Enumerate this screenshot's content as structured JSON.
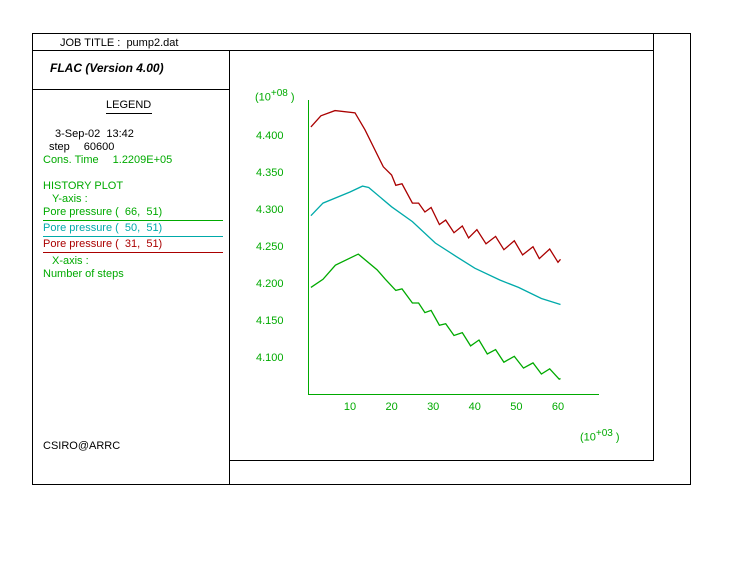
{
  "header": {
    "job_title_label": "JOB TITLE :",
    "job_title": "pump2.dat",
    "program": "FLAC (Version 4.00)"
  },
  "legend": {
    "title": "LEGEND",
    "date": "3-Sep-02  13:42",
    "step_label": "step",
    "step": "60600",
    "cons_time_label": "Cons. Time",
    "cons_time": "1.2209E+05",
    "history_plot": "HISTORY PLOT",
    "y_axis_label": "Y-axis :",
    "x_axis_label": "X-axis :",
    "x_axis_name": "Number of steps",
    "footer": "CSIRO@ARRC"
  },
  "colors": {
    "green": "#00aa00",
    "cyan": "#00aaaa",
    "red": "#aa0000"
  },
  "chart_data": {
    "type": "line",
    "title": "",
    "xlabel": "Number of steps",
    "ylabel": "Pore pressure",
    "x_multiplier": "(10+03 )",
    "y_multiplier": "(10+08 )",
    "x_mult_base": "(10",
    "x_mult_exp": "+03",
    "y_mult_exp": "+08",
    "xlim": [
      0,
      69
    ],
    "ylim": [
      4.05,
      4.447
    ],
    "xticks": [
      10,
      20,
      30,
      40,
      50,
      60
    ],
    "yticks": [
      4.1,
      4.15,
      4.2,
      4.25,
      4.3,
      4.35,
      4.4
    ],
    "ytick_labels": [
      "4.100",
      "4.150",
      "4.200",
      "4.250",
      "4.300",
      "4.350",
      "4.400"
    ],
    "series": [
      {
        "name": "Pore pressure (  66,  51)",
        "color": "#00aa00",
        "x": [
          0.6,
          3.5,
          6.5,
          12,
          16.5,
          18.5,
          21,
          22.5,
          25,
          26.5,
          28,
          29.5,
          31.5,
          33,
          35,
          37,
          39,
          41,
          43,
          45,
          47,
          49.5,
          51.7,
          54,
          56,
          58,
          60.3,
          60.6
        ],
        "y": [
          4.194,
          4.205,
          4.224,
          4.239,
          4.218,
          4.205,
          4.19,
          4.192,
          4.173,
          4.173,
          4.16,
          4.163,
          4.143,
          4.145,
          4.129,
          4.133,
          4.115,
          4.123,
          4.104,
          4.11,
          4.093,
          4.101,
          4.085,
          4.092,
          4.077,
          4.084,
          4.07,
          4.071
        ]
      },
      {
        "name": "Pore pressure (  50,  51)",
        "color": "#00aaaa",
        "x": [
          0.6,
          3.5,
          10,
          13,
          14.5,
          20,
          25,
          30.5,
          35.5,
          40,
          46,
          50.5,
          56,
          60.6
        ],
        "y": [
          4.291,
          4.308,
          4.323,
          4.331,
          4.329,
          4.303,
          4.283,
          4.254,
          4.236,
          4.22,
          4.204,
          4.194,
          4.179,
          4.171
        ]
      },
      {
        "name": "Pore pressure (  31,  51)",
        "color": "#aa0000",
        "x": [
          0.6,
          3,
          6.4,
          11.2,
          13.6,
          18,
          20,
          21,
          22.5,
          25,
          26.5,
          28,
          29.5,
          31.5,
          33,
          35,
          37,
          38.5,
          40.5,
          42.7,
          45,
          47,
          49.5,
          51.5,
          54,
          55.5,
          58,
          60,
          60.6
        ],
        "y": [
          4.411,
          4.426,
          4.433,
          4.43,
          4.407,
          4.357,
          4.346,
          4.332,
          4.334,
          4.308,
          4.308,
          4.296,
          4.302,
          4.279,
          4.285,
          4.268,
          4.277,
          4.261,
          4.272,
          4.253,
          4.263,
          4.245,
          4.257,
          4.238,
          4.249,
          4.233,
          4.246,
          4.228,
          4.232
        ]
      }
    ]
  }
}
